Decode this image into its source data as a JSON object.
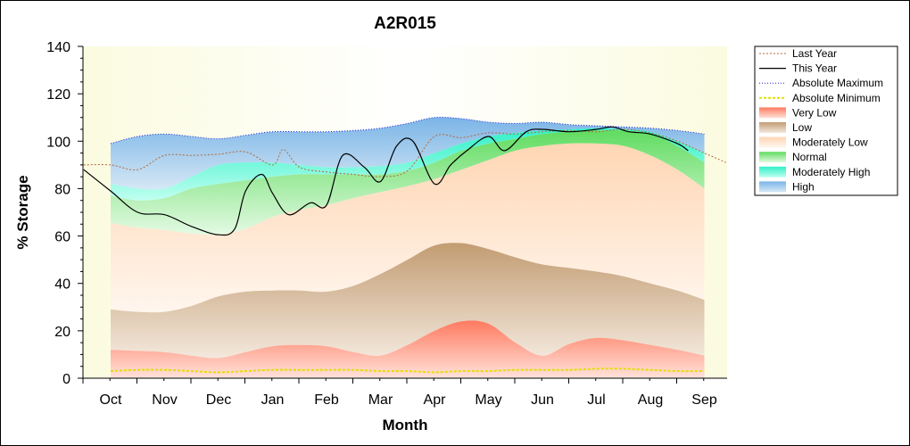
{
  "chart_data": {
    "type": "area",
    "title": "A2R015",
    "xlabel": "Month",
    "ylabel": "% Storage",
    "categories": [
      "Oct",
      "Nov",
      "Dec",
      "Jan",
      "Feb",
      "Mar",
      "Apr",
      "May",
      "Jun",
      "Jul",
      "Aug",
      "Sep"
    ],
    "ylim": [
      0,
      140
    ],
    "yticks": [
      0,
      20,
      40,
      60,
      80,
      100,
      120,
      140
    ],
    "grid": false,
    "legend_position": "right",
    "colors": {
      "last_year": "#b06a3a",
      "this_year": "#000000",
      "abs_max": "#2020d0",
      "abs_min": "#e0e000",
      "very_low": "#ff8a70",
      "low": "#c8a47c",
      "moderately_low": "#ffdcc0",
      "normal": "#7de07d",
      "moderately_high": "#60f0d0",
      "high": "#a0c8e8"
    },
    "band_x": [
      0,
      0.5,
      1,
      1.5,
      2,
      2.5,
      3,
      3.5,
      4,
      4.5,
      5,
      5.5,
      6,
      6.5,
      7,
      7.5,
      8,
      8.5,
      9,
      9.5,
      10,
      10.5,
      11
    ],
    "bands": {
      "very_low_top": [
        12,
        11.5,
        11,
        9.5,
        8.5,
        11,
        13.5,
        14,
        13.5,
        11,
        9.5,
        14,
        20,
        24,
        23,
        15,
        9.5,
        14.5,
        17,
        16,
        14,
        12,
        9.5
      ],
      "low_top": [
        29,
        28,
        28,
        30.5,
        34.5,
        36.5,
        37,
        37,
        36.5,
        39,
        44,
        50,
        56,
        57,
        54.5,
        51,
        48,
        46.5,
        45,
        43,
        40,
        37,
        33
      ],
      "mod_low_top": [
        65.5,
        63.5,
        62.5,
        61,
        60.5,
        63,
        68,
        71,
        73,
        76,
        78.5,
        81,
        84,
        88,
        92,
        96,
        98,
        99,
        99,
        98,
        94,
        88,
        80
      ],
      "normal_top": [
        77,
        75,
        76,
        80,
        82,
        83.5,
        85,
        86,
        86,
        86,
        86,
        87.5,
        91,
        96,
        99,
        101,
        103,
        104,
        104.5,
        104.5,
        103,
        98,
        91
      ],
      "mod_high_top": [
        82,
        80,
        80,
        85,
        90,
        91,
        91,
        90,
        89,
        89,
        89.5,
        91,
        95,
        99,
        102,
        103.5,
        104.5,
        105,
        105.5,
        105,
        104,
        100,
        95
      ],
      "high_top": [
        99,
        102,
        103,
        102,
        101,
        102.5,
        104,
        104,
        104,
        104.5,
        105.5,
        107.5,
        110,
        109.5,
        108,
        107.5,
        108,
        107,
        106.5,
        106,
        105.5,
        104.5,
        103
      ]
    },
    "series": [
      {
        "name": "Last Year",
        "x": [
          -0.5,
          0,
          0.5,
          1,
          1.5,
          2,
          2.5,
          3,
          3.2,
          3.5,
          4,
          4.5,
          5,
          5.5,
          6,
          6.5,
          7,
          7.5,
          8,
          8.5,
          9,
          9.5,
          10,
          10.5,
          11,
          11.4
        ],
        "values": [
          90,
          90,
          88,
          94,
          94,
          94.5,
          95.5,
          90,
          96.5,
          89,
          87,
          86,
          85,
          87.5,
          102,
          101.5,
          103.5,
          103,
          104,
          104.5,
          104,
          105,
          103.5,
          100,
          95,
          91
        ]
      },
      {
        "name": "This Year",
        "x": [
          -0.5,
          0,
          0.5,
          1,
          1.5,
          2,
          2.3,
          2.5,
          2.8,
          3,
          3.3,
          3.7,
          4,
          4.3,
          4.7,
          5,
          5.3,
          5.6,
          6,
          6.3,
          6.6,
          7,
          7.3,
          7.7,
          8,
          8.5,
          9,
          9.3,
          9.6,
          10,
          10.5,
          10.7
        ],
        "values": [
          88,
          79,
          70,
          69,
          64,
          60.5,
          63,
          79,
          86,
          78,
          69,
          74,
          73,
          94,
          89,
          83,
          98,
          100,
          82,
          90,
          96,
          102,
          96,
          104,
          105,
          104,
          105,
          106,
          104,
          103,
          99,
          96
        ]
      },
      {
        "name": "Absolute Maximum",
        "x": [
          0,
          0.5,
          1,
          1.5,
          2,
          2.5,
          3,
          3.5,
          4,
          4.5,
          5,
          5.5,
          6,
          6.5,
          7,
          7.5,
          8,
          8.5,
          9,
          9.5,
          10,
          10.5,
          11
        ],
        "values": [
          99,
          102,
          103,
          102,
          101,
          102.5,
          104,
          104,
          104,
          104.5,
          105.5,
          107.5,
          110,
          109.5,
          108,
          107.5,
          108,
          107,
          106.5,
          106,
          105.5,
          104.5,
          103
        ]
      },
      {
        "name": "Absolute Minimum",
        "x": [
          0,
          0.5,
          1,
          1.5,
          2,
          2.5,
          3,
          3.5,
          4,
          4.5,
          5,
          5.5,
          6,
          6.5,
          7,
          7.5,
          8,
          8.5,
          9,
          9.5,
          10,
          10.5,
          11
        ],
        "values": [
          3,
          3.5,
          3.5,
          3,
          2.5,
          3,
          3.5,
          3.5,
          3.5,
          3.5,
          3,
          3,
          2.5,
          3,
          3,
          3.5,
          3.5,
          3.5,
          4,
          4,
          3.5,
          3,
          3
        ]
      }
    ]
  },
  "legend": {
    "items": [
      {
        "label": "Last Year",
        "kind": "line-last-year"
      },
      {
        "label": "This Year",
        "kind": "line-this-year"
      },
      {
        "label": "Absolute Maximum",
        "kind": "line-abs-max"
      },
      {
        "label": "Absolute Minimum",
        "kind": "line-abs-min"
      },
      {
        "label": "Very Low",
        "kind": "band-very-low"
      },
      {
        "label": "Low",
        "kind": "band-low"
      },
      {
        "label": "Moderately Low",
        "kind": "band-mod-low"
      },
      {
        "label": "Normal",
        "kind": "band-normal"
      },
      {
        "label": "Moderately High",
        "kind": "band-mod-high"
      },
      {
        "label": "High",
        "kind": "band-high"
      }
    ]
  }
}
